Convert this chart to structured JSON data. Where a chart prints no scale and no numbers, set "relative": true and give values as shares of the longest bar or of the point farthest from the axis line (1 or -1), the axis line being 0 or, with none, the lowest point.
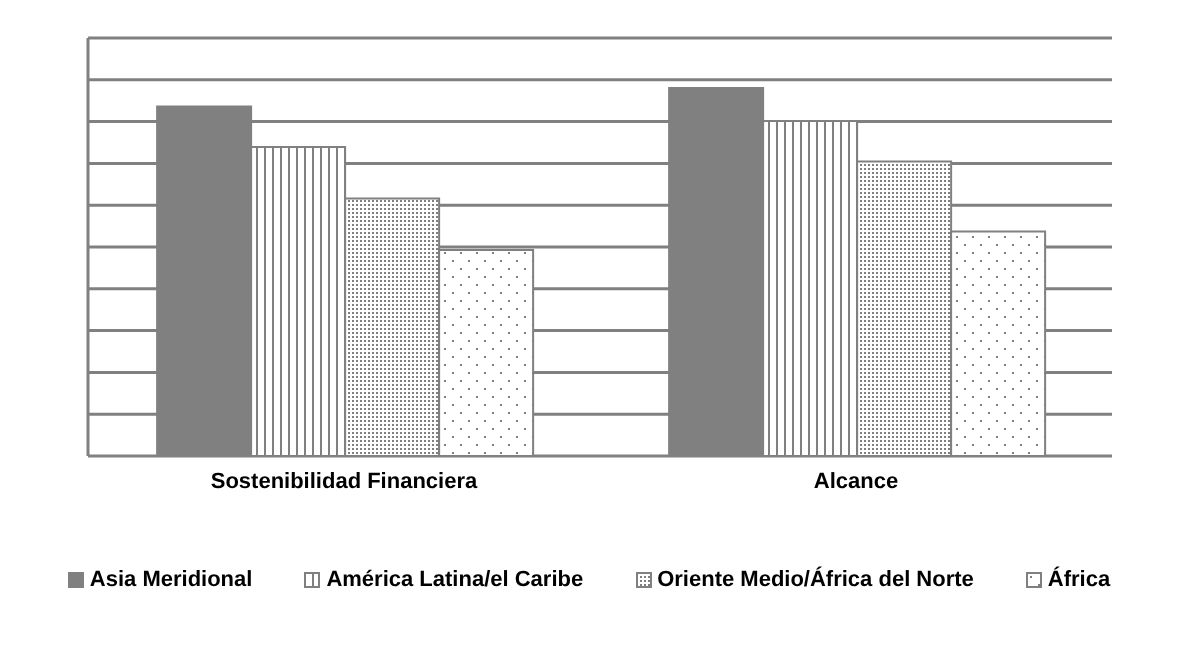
{
  "chart_data": {
    "type": "bar",
    "relative": true,
    "categories": [
      "Sostenibilidad Financiera",
      "Alcance"
    ],
    "grid": "y",
    "legend": "bottom",
    "series": [
      {
        "name": "Asia Meridional",
        "color": "#808080",
        "values": [
          0.95,
          1
        ]
      },
      {
        "name": "América Latina/el Caribe",
        "color": "#808080",
        "values": [
          0.84,
          0.91
        ]
      },
      {
        "name": "Oriente Medio/África del Norte",
        "color": "#808080",
        "values": [
          0.7,
          0.8
        ]
      },
      {
        "name": "África",
        "color": "#808080",
        "values": [
          0.56,
          0.61
        ]
      }
    ]
  }
}
